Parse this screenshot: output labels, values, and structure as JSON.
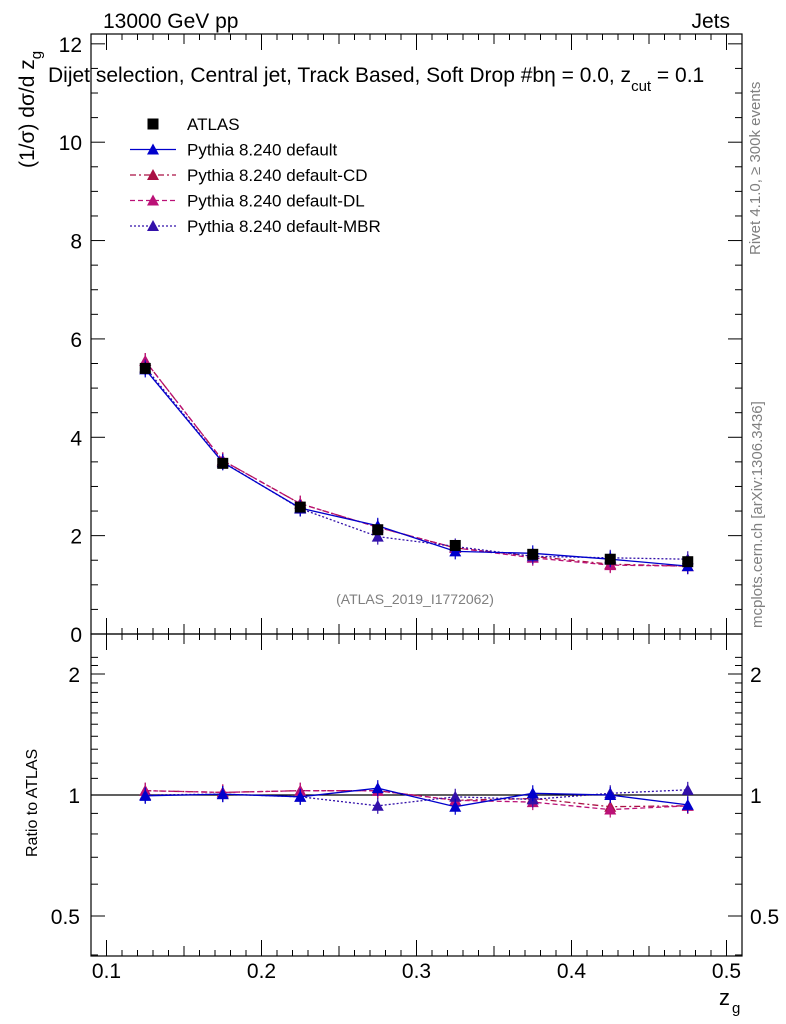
{
  "header": {
    "energy": "13000 GeV pp",
    "category": "Jets",
    "selection_text": "Dijet selection, Central jet, Track Based, Soft Drop #b",
    "selection_params": "η = 0.0, z",
    "selection_sub": "cut",
    "selection_tail": " = 0.1",
    "rivet_label": "Rivet 4.1.0, ≥ 300k events",
    "mcplots_label": "mcplots.cern.ch [arXiv:1306.3436]",
    "analysis_id": "(ATLAS_2019_I1772062)"
  },
  "colors": {
    "data": "#000000",
    "default": "#0000cc",
    "cd": "#aa1144",
    "dl": "#bb1177",
    "mbr": "#3311aa"
  },
  "chart_data": [
    {
      "type": "line",
      "title": "Dijet selection, Central jet, Track Based, Soft Drop",
      "ylabel": "(1/σ) dσ/d z_g",
      "xlim": [
        0.09,
        0.51
      ],
      "ylim": [
        0,
        12.2
      ],
      "yticks": [
        0,
        2,
        4,
        6,
        8,
        10,
        12
      ],
      "x": [
        0.125,
        0.175,
        0.225,
        0.275,
        0.325,
        0.375,
        0.425,
        0.475
      ],
      "series": [
        {
          "name": "ATLAS",
          "style": "data",
          "values": [
            5.4,
            3.47,
            2.58,
            2.12,
            1.8,
            1.62,
            1.52,
            1.47
          ],
          "errors": [
            0.12,
            0.07,
            0.05,
            0.06,
            0.05,
            0.05,
            0.05,
            0.05
          ]
        },
        {
          "name": "Pythia 8.240 default",
          "style": "default",
          "values": [
            5.38,
            3.49,
            2.56,
            2.2,
            1.68,
            1.64,
            1.52,
            1.38
          ]
        },
        {
          "name": "Pythia 8.240 default-CD",
          "style": "cd",
          "values": [
            5.55,
            3.53,
            2.65,
            2.17,
            1.75,
            1.58,
            1.42,
            1.38
          ]
        },
        {
          "name": "Pythia 8.240 default-DL",
          "style": "dl",
          "values": [
            5.55,
            3.53,
            2.65,
            2.17,
            1.75,
            1.55,
            1.4,
            1.38
          ]
        },
        {
          "name": "Pythia 8.240 default-MBR",
          "style": "mbr",
          "values": [
            5.42,
            3.5,
            2.55,
            1.98,
            1.78,
            1.58,
            1.55,
            1.52
          ]
        }
      ]
    },
    {
      "type": "line",
      "ylabel": "Ratio to ATLAS",
      "xlabel": "z_g",
      "xlim": [
        0.09,
        0.51
      ],
      "ylim": [
        0.35,
        2.3
      ],
      "yticks": [
        0.5,
        1,
        2
      ],
      "xticks": [
        0.1,
        0.2,
        0.3,
        0.4,
        0.5
      ],
      "x": [
        0.125,
        0.175,
        0.225,
        0.275,
        0.325,
        0.375,
        0.425,
        0.475
      ],
      "series": [
        {
          "name": "Pythia 8.240 default",
          "style": "default",
          "values": [
            0.995,
            1.005,
            0.99,
            1.04,
            0.935,
            1.01,
            1.0,
            0.945
          ]
        },
        {
          "name": "Pythia 8.240 default-CD",
          "style": "cd",
          "values": [
            1.025,
            1.015,
            1.025,
            1.025,
            0.97,
            0.98,
            0.935,
            0.94
          ]
        },
        {
          "name": "Pythia 8.240 default-DL",
          "style": "dl",
          "values": [
            1.025,
            1.015,
            1.025,
            1.025,
            0.97,
            0.96,
            0.92,
            0.94
          ]
        },
        {
          "name": "Pythia 8.240 default-MBR",
          "style": "mbr",
          "values": [
            1.0,
            1.005,
            0.99,
            0.94,
            0.99,
            0.975,
            1.01,
            1.03
          ]
        }
      ]
    }
  ]
}
